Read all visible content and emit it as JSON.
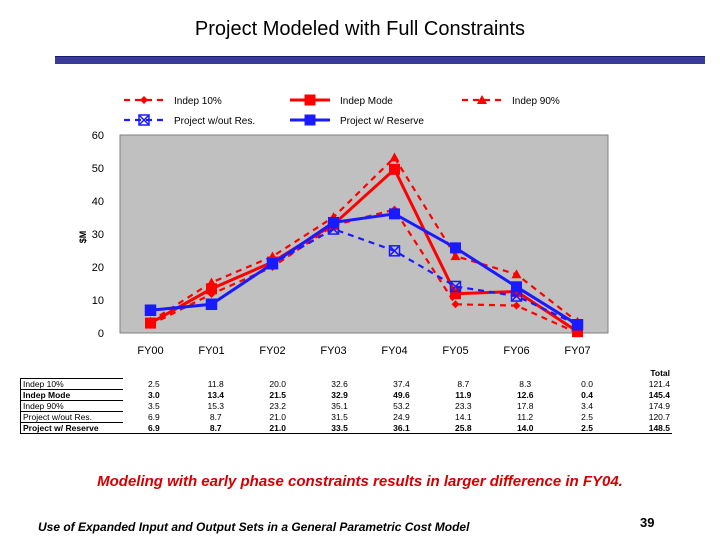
{
  "slide": {
    "title": "Project Modeled with Full Constraints",
    "conclusion": "Modeling with early phase constraints results in larger difference in FY04.",
    "footer": "Use of Expanded Input and Output Sets in a General Parametric Cost Model",
    "page_number": "39"
  },
  "colors": {
    "red": "#ff0000",
    "blue": "#1a1aff",
    "plot_bg": "#c0c0c0",
    "title_bar": "#3a3a9a"
  },
  "chart_data": {
    "type": "line",
    "title": "",
    "xlabel": "",
    "ylabel": "$M",
    "ylim": [
      0,
      60
    ],
    "yticks": [
      0,
      10,
      20,
      30,
      40,
      50,
      60
    ],
    "categories": [
      "FY00",
      "FY01",
      "FY02",
      "FY03",
      "FY04",
      "FY05",
      "FY06",
      "FY07"
    ],
    "legend_position": "top",
    "series": [
      {
        "name": "Indep 10%",
        "color": "#ff0000",
        "dash": "dashed",
        "marker": "diamond",
        "values": [
          2.5,
          11.8,
          20.0,
          32.6,
          37.4,
          8.7,
          8.3,
          0.0
        ]
      },
      {
        "name": "Indep Mode",
        "color": "#ff0000",
        "dash": "solid",
        "marker": "square",
        "values": [
          3.0,
          13.4,
          21.5,
          32.9,
          49.6,
          11.9,
          12.6,
          0.4
        ]
      },
      {
        "name": "Indep 90%",
        "color": "#ff0000",
        "dash": "dashed",
        "marker": "triangle",
        "values": [
          3.5,
          15.3,
          23.2,
          35.1,
          53.2,
          23.3,
          17.8,
          3.4
        ]
      },
      {
        "name": "Project w/out Res.",
        "color": "#1a1aff",
        "dash": "dashed",
        "marker": "xsquare",
        "values": [
          6.9,
          8.7,
          21.0,
          31.5,
          24.9,
          14.1,
          11.2,
          2.5
        ]
      },
      {
        "name": "Project w/ Reserve",
        "color": "#1a1aff",
        "dash": "solid",
        "marker": "square",
        "values": [
          6.9,
          8.7,
          21.0,
          33.5,
          36.1,
          25.8,
          14.0,
          2.5
        ]
      }
    ]
  },
  "table": {
    "total_header": "Total",
    "rows": [
      {
        "label": "Indep 10%",
        "values": [
          "2.5",
          "11.8",
          "20.0",
          "32.6",
          "37.4",
          "8.7",
          "8.3",
          "0.0"
        ],
        "total": "121.4",
        "bold": false
      },
      {
        "label": "Indep Mode",
        "values": [
          "3.0",
          "13.4",
          "21.5",
          "32.9",
          "49.6",
          "11.9",
          "12.6",
          "0.4"
        ],
        "total": "145.4",
        "bold": true
      },
      {
        "label": "Indep 90%",
        "values": [
          "3.5",
          "15.3",
          "23.2",
          "35.1",
          "53.2",
          "23.3",
          "17.8",
          "3.4"
        ],
        "total": "174.9",
        "bold": false
      },
      {
        "label": "Project w/out Res.",
        "values": [
          "6.9",
          "8.7",
          "21.0",
          "31.5",
          "24.9",
          "14.1",
          "11.2",
          "2.5"
        ],
        "total": "120.7",
        "bold": false
      },
      {
        "label": "Project w/ Reserve",
        "values": [
          "6.9",
          "8.7",
          "21.0",
          "33.5",
          "36.1",
          "25.8",
          "14.0",
          "2.5"
        ],
        "total": "148.5",
        "bold": true
      }
    ]
  }
}
